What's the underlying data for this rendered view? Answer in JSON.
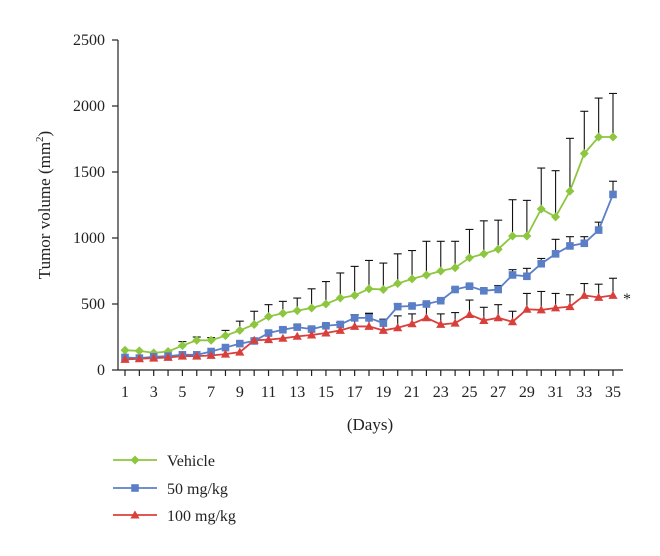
{
  "chart_data": {
    "type": "line",
    "title": "",
    "xlabel": "(Days)",
    "ylabel_main": "Tumor volume (mm",
    "ylabel_sup": "2",
    "ylabel_close": ")",
    "xlim": [
      1,
      35
    ],
    "ylim": [
      0,
      2500
    ],
    "x_ticks": [
      1,
      3,
      5,
      7,
      9,
      11,
      13,
      15,
      17,
      19,
      21,
      23,
      25,
      27,
      29,
      31,
      33,
      35
    ],
    "y_ticks": [
      0,
      500,
      1000,
      1500,
      2000,
      2500
    ],
    "x": [
      1,
      2,
      3,
      4,
      5,
      6,
      7,
      8,
      9,
      10,
      11,
      12,
      13,
      14,
      15,
      16,
      17,
      18,
      19,
      20,
      21,
      22,
      23,
      24,
      25,
      26,
      27,
      28,
      29,
      30,
      31,
      32,
      33,
      34,
      35
    ],
    "legend_position": "bottom-left",
    "annotation": "*",
    "series": [
      {
        "name": "Vehicle",
        "color": "#8dc63f",
        "marker": "diamond",
        "values": [
          150,
          145,
          130,
          140,
          185,
          225,
          225,
          260,
          300,
          345,
          405,
          430,
          450,
          470,
          500,
          545,
          565,
          615,
          610,
          655,
          690,
          720,
          750,
          775,
          850,
          880,
          915,
          1015,
          1015,
          1220,
          1160,
          1355,
          1640,
          1765,
          1765
        ],
        "errors": [
          0,
          0,
          0,
          0,
          30,
          25,
          20,
          40,
          70,
          100,
          90,
          90,
          95,
          145,
          170,
          190,
          220,
          215,
          200,
          225,
          215,
          255,
          225,
          200,
          215,
          250,
          220,
          275,
          270,
          310,
          350,
          400,
          320,
          295,
          330
        ]
      },
      {
        "name": "50 mg/kg",
        "color": "#5b7fc7",
        "marker": "square",
        "values": [
          95,
          90,
          100,
          105,
          115,
          115,
          140,
          170,
          200,
          220,
          280,
          305,
          325,
          310,
          335,
          345,
          395,
          395,
          355,
          480,
          485,
          500,
          525,
          610,
          635,
          600,
          610,
          720,
          710,
          805,
          880,
          940,
          960,
          1060,
          1330
        ],
        "errors": [
          0,
          0,
          0,
          0,
          0,
          0,
          0,
          0,
          0,
          0,
          15,
          15,
          15,
          15,
          15,
          15,
          20,
          30,
          30,
          20,
          10,
          10,
          10,
          10,
          10,
          10,
          30,
          40,
          60,
          40,
          110,
          70,
          50,
          60,
          100
        ]
      },
      {
        "name": "100 mg/kg",
        "color": "#d9403b",
        "marker": "triangle",
        "values": [
          80,
          85,
          90,
          95,
          105,
          105,
          110,
          120,
          135,
          225,
          230,
          240,
          255,
          265,
          280,
          300,
          330,
          330,
          300,
          320,
          350,
          395,
          345,
          355,
          420,
          375,
          395,
          365,
          460,
          455,
          470,
          480,
          565,
          550,
          565
        ],
        "errors": [
          0,
          0,
          0,
          0,
          0,
          0,
          0,
          0,
          0,
          0,
          0,
          0,
          0,
          0,
          60,
          60,
          90,
          100,
          80,
          90,
          75,
          100,
          80,
          80,
          110,
          100,
          100,
          80,
          120,
          140,
          110,
          90,
          90,
          100,
          130
        ]
      }
    ]
  }
}
